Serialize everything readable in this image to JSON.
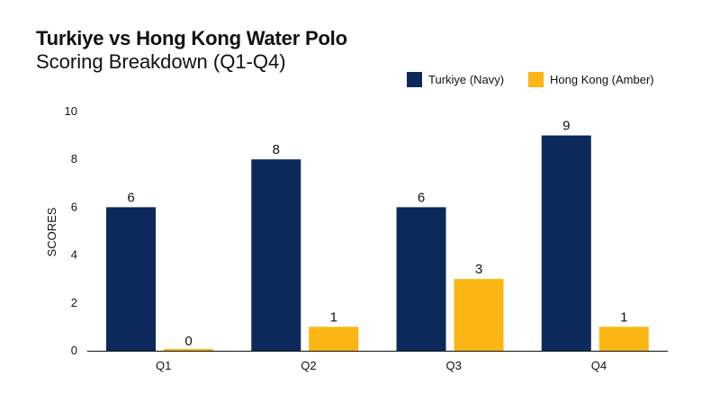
{
  "chart_data": {
    "type": "bar",
    "title": "Turkiye vs Hong Kong Water Polo",
    "subtitle": "Scoring Breakdown (Q1-Q4)",
    "xlabel": "",
    "ylabel": "SCORES",
    "categories": [
      "Q1",
      "Q2",
      "Q3",
      "Q4"
    ],
    "ylim": [
      0,
      10
    ],
    "yticks": [
      "0",
      "2",
      "4",
      "6",
      "8",
      "10"
    ],
    "grid": false,
    "legend_position": "top-right",
    "series": [
      {
        "name": "Turkiye (Navy)",
        "color": "#0b2a5b",
        "values": [
          6,
          8,
          6,
          9
        ],
        "labels": [
          "6",
          "8",
          "6",
          "9"
        ]
      },
      {
        "name": "Hong Kong (Amber)",
        "color": "#fbb614",
        "values": [
          0,
          1,
          3,
          1
        ],
        "labels": [
          "0",
          "1",
          "3",
          "1"
        ]
      }
    ]
  }
}
